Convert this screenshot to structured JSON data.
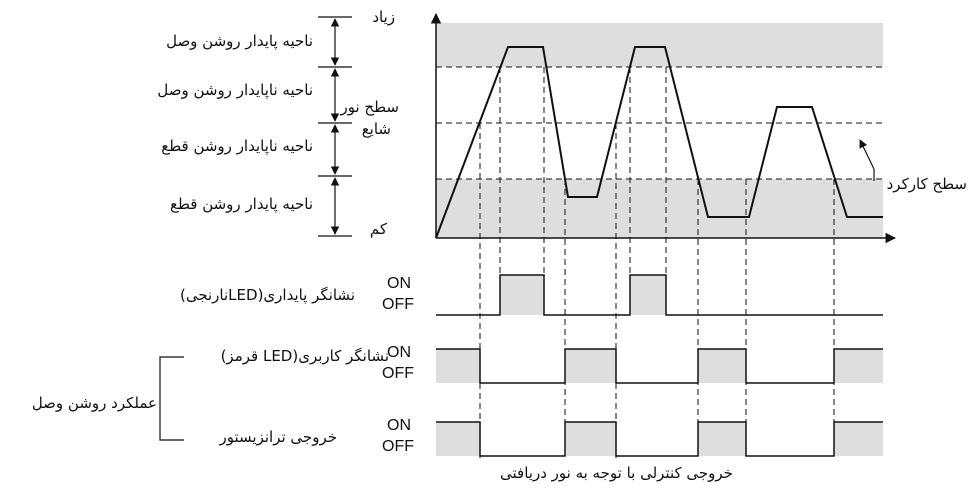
{
  "zones": {
    "stable_on": "ناحیه پایدار روشن وصل",
    "unstable_on": "ناحیه ناپایدار روشن وصل",
    "unstable_off": "ناحیه ناپایدار روشن قطع",
    "stable_off": "ناحیه پایدار روشن قطع"
  },
  "light_axis": {
    "high": "زیاد",
    "level_line1": "سطح نور",
    "level_line2": "شایع",
    "low": "کم"
  },
  "threshold_label": "سطح کارکرد",
  "signals": {
    "stability_indicator": "نشانگر پایداری(LEDنارنجی)",
    "user_indicator": "نشانگر کاربری(LED قرمز)",
    "transistor_output": "خروجی ترانزیستور",
    "on_label": "ON",
    "off_label": "OFF"
  },
  "group_label": "عملکرد روشن وصل",
  "caption": "خروجی کنترلی با توجه به نور دریافتی",
  "colors": {
    "shaded_band": "#dedede",
    "line": "#111111"
  }
}
